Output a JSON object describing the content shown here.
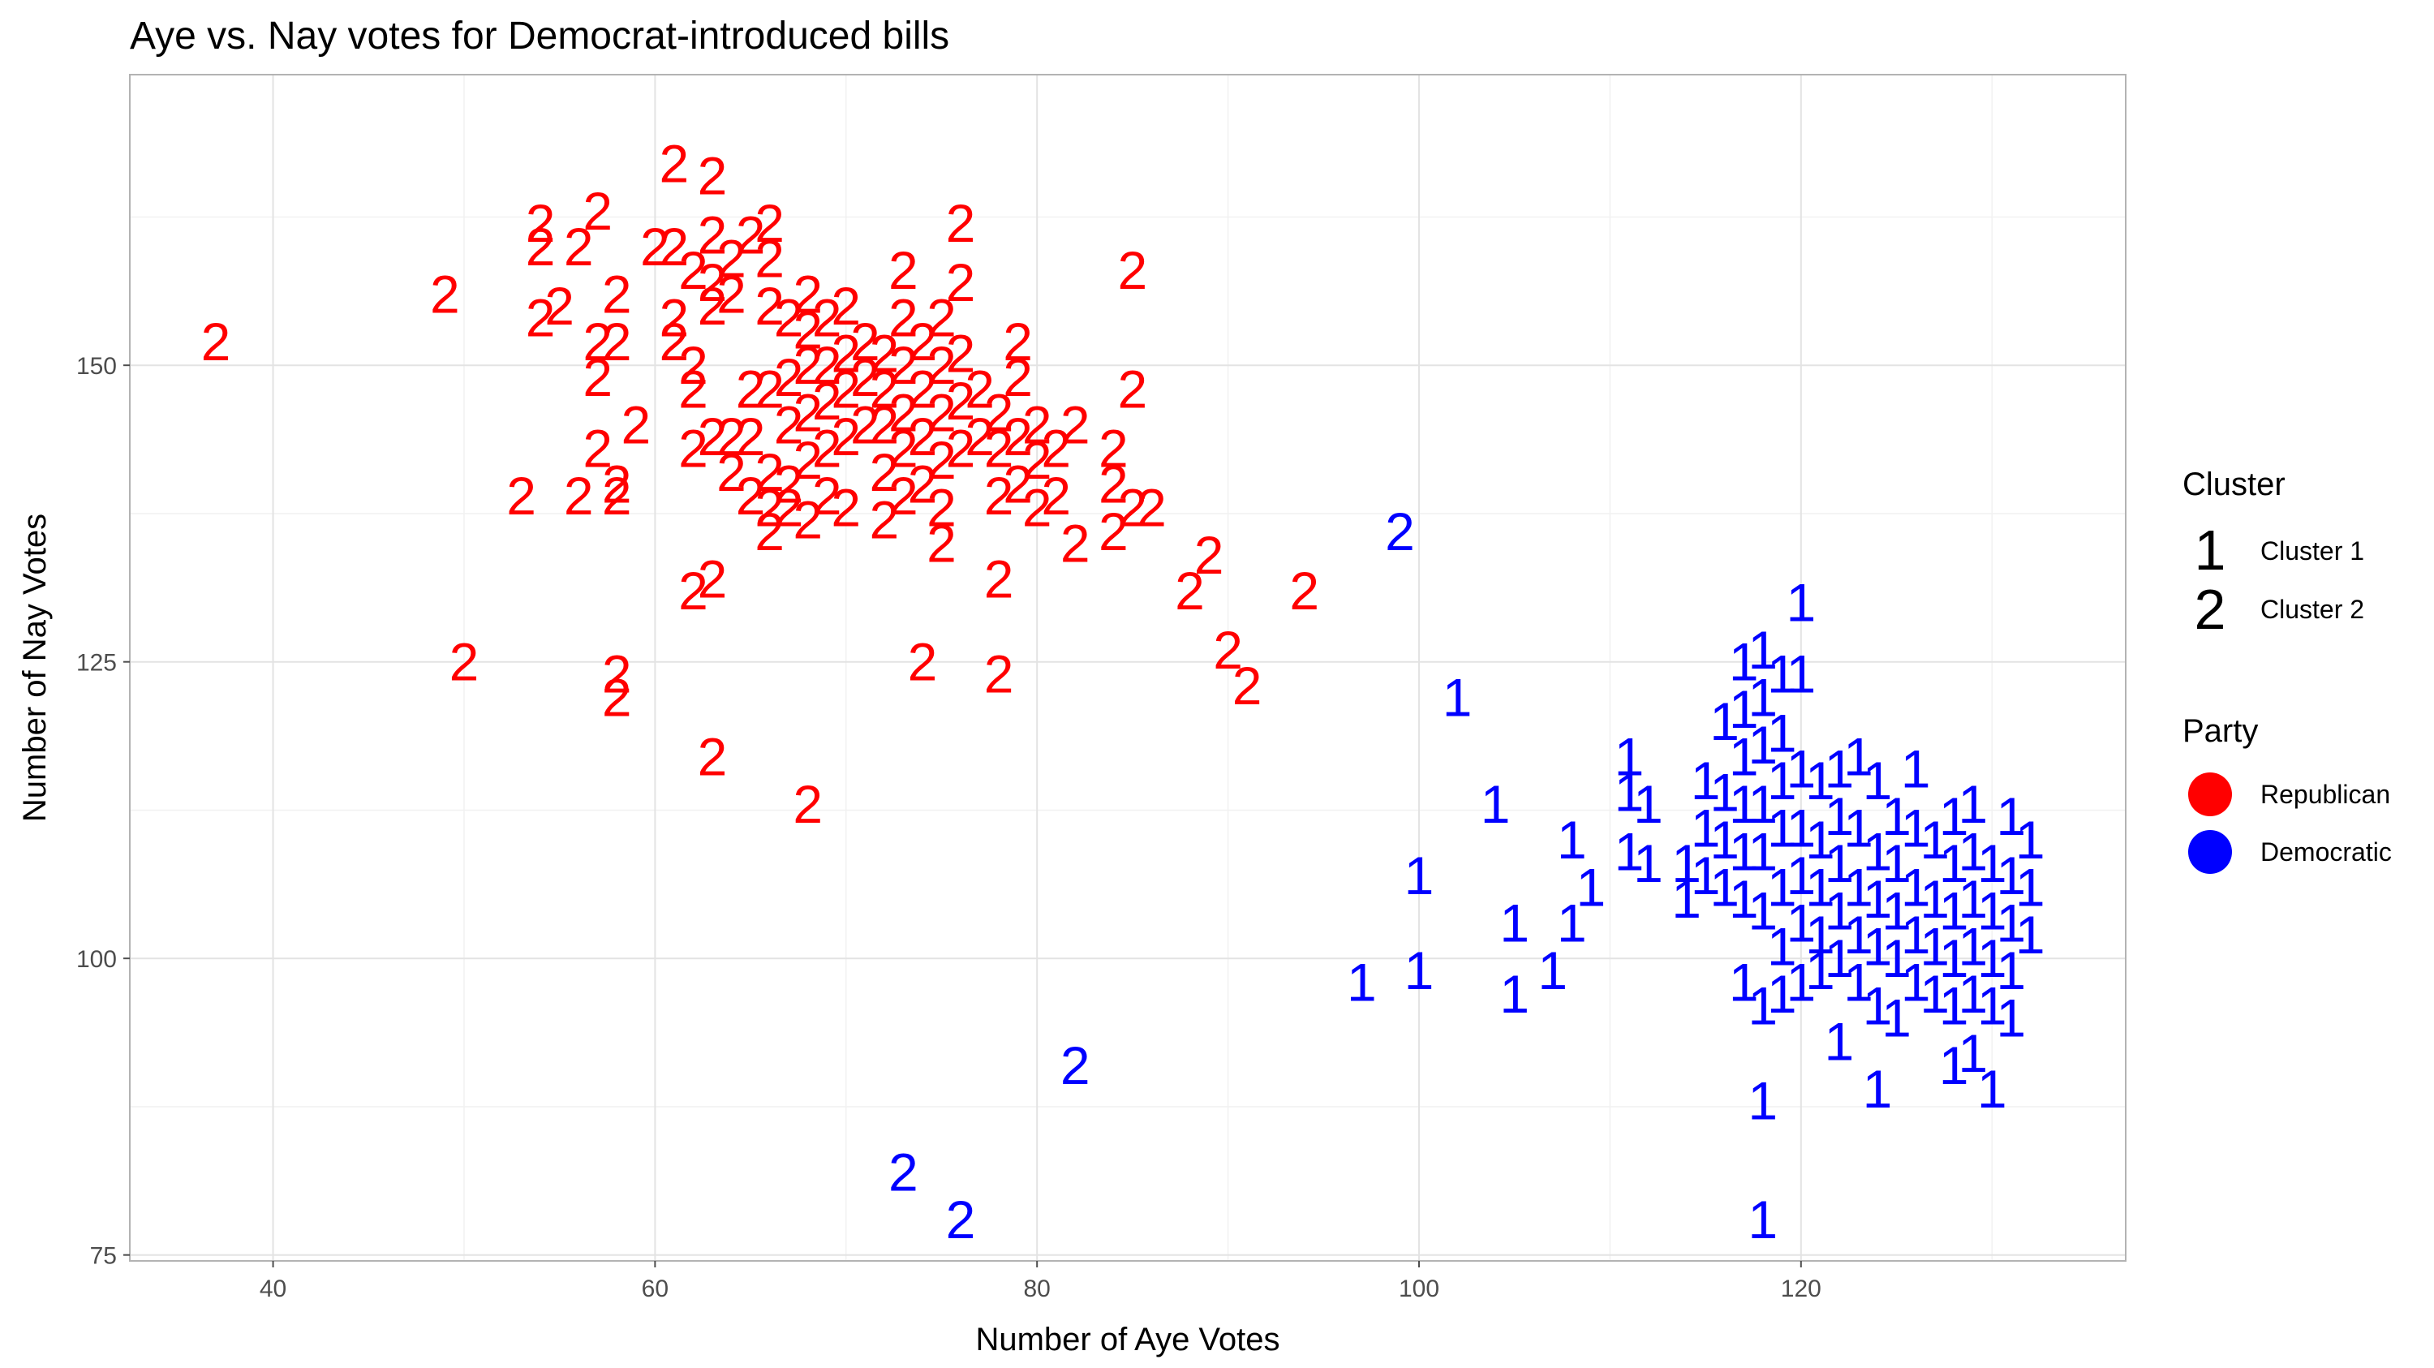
{
  "chart_data": {
    "type": "scatter",
    "title": "Aye vs. Nay votes for Democrat-introduced bills",
    "xlabel": "Number of Aye Votes",
    "ylabel": "Number of Nay Votes",
    "xlim": [
      32.5,
      137
    ],
    "ylim": [
      74.5,
      174.5
    ],
    "xticks": [
      40,
      60,
      80,
      100,
      120
    ],
    "yticks": [
      75,
      100,
      125,
      150
    ],
    "xticks_minor": [
      50,
      70,
      90,
      110,
      130
    ],
    "yticks_minor": [
      87.5,
      112.5,
      137.5,
      162.5
    ],
    "grid": true,
    "legend_placement": "right",
    "legend": {
      "cluster": {
        "title": "Cluster",
        "entries": [
          {
            "glyph": "1",
            "label": "Cluster 1"
          },
          {
            "glyph": "2",
            "label": "Cluster 2"
          }
        ]
      },
      "party": {
        "title": "Party",
        "entries": [
          {
            "label": "Republican",
            "color": "#ff0000"
          },
          {
            "label": "Democratic",
            "color": "#0000ff"
          }
        ]
      }
    },
    "series": [
      {
        "name": "Republican",
        "color": "#ff0000",
        "cluster": "2",
        "points": [
          [
            37,
            152
          ],
          [
            49,
            156
          ],
          [
            50,
            125
          ],
          [
            53,
            139
          ],
          [
            54,
            162
          ],
          [
            54,
            160
          ],
          [
            54,
            154
          ],
          [
            55,
            155
          ],
          [
            56,
            160
          ],
          [
            56,
            139
          ],
          [
            57,
            163
          ],
          [
            57,
            152
          ],
          [
            57,
            149
          ],
          [
            57,
            143
          ],
          [
            58,
            156
          ],
          [
            58,
            152
          ],
          [
            58,
            140
          ],
          [
            58,
            139
          ],
          [
            58,
            124
          ],
          [
            58,
            122
          ],
          [
            59,
            145
          ],
          [
            60,
            160
          ],
          [
            61,
            160
          ],
          [
            61,
            154
          ],
          [
            61,
            152
          ],
          [
            61,
            167
          ],
          [
            62,
            158
          ],
          [
            62,
            150
          ],
          [
            62,
            148
          ],
          [
            62,
            143
          ],
          [
            62,
            131
          ],
          [
            63,
            166
          ],
          [
            63,
            161
          ],
          [
            63,
            157
          ],
          [
            63,
            155
          ],
          [
            63,
            144
          ],
          [
            63,
            132
          ],
          [
            63,
            117
          ],
          [
            64,
            159
          ],
          [
            64,
            156
          ],
          [
            64,
            144
          ],
          [
            64,
            141
          ],
          [
            65,
            161
          ],
          [
            65,
            148
          ],
          [
            65,
            144
          ],
          [
            65,
            139
          ],
          [
            66,
            162
          ],
          [
            66,
            159
          ],
          [
            66,
            155
          ],
          [
            66,
            148
          ],
          [
            66,
            141
          ],
          [
            66,
            138
          ],
          [
            66,
            136
          ],
          [
            67,
            154
          ],
          [
            67,
            149
          ],
          [
            67,
            145
          ],
          [
            67,
            140
          ],
          [
            67,
            138
          ],
          [
            68,
            156
          ],
          [
            68,
            153
          ],
          [
            68,
            150
          ],
          [
            68,
            146
          ],
          [
            68,
            142
          ],
          [
            68,
            137
          ],
          [
            68,
            113
          ],
          [
            69,
            154
          ],
          [
            69,
            150
          ],
          [
            69,
            147
          ],
          [
            69,
            143
          ],
          [
            69,
            139
          ],
          [
            70,
            155
          ],
          [
            70,
            151
          ],
          [
            70,
            148
          ],
          [
            70,
            144
          ],
          [
            70,
            138
          ],
          [
            71,
            152
          ],
          [
            71,
            149
          ],
          [
            71,
            145
          ],
          [
            72,
            151
          ],
          [
            72,
            148
          ],
          [
            72,
            145
          ],
          [
            72,
            141
          ],
          [
            72,
            137
          ],
          [
            73,
            158
          ],
          [
            73,
            154
          ],
          [
            73,
            150
          ],
          [
            73,
            146
          ],
          [
            73,
            143
          ],
          [
            73,
            139
          ],
          [
            74,
            152
          ],
          [
            74,
            148
          ],
          [
            74,
            144
          ],
          [
            74,
            140
          ],
          [
            74,
            125
          ],
          [
            75,
            154
          ],
          [
            75,
            150
          ],
          [
            75,
            146
          ],
          [
            75,
            142
          ],
          [
            75,
            138
          ],
          [
            75,
            135
          ],
          [
            76,
            162
          ],
          [
            76,
            157
          ],
          [
            76,
            151
          ],
          [
            76,
            147
          ],
          [
            76,
            143
          ],
          [
            77,
            148
          ],
          [
            77,
            144
          ],
          [
            78,
            146
          ],
          [
            78,
            143
          ],
          [
            78,
            139
          ],
          [
            78,
            132
          ],
          [
            78,
            124
          ],
          [
            79,
            152
          ],
          [
            79,
            149
          ],
          [
            79,
            144
          ],
          [
            79,
            140
          ],
          [
            80,
            145
          ],
          [
            80,
            142
          ],
          [
            80,
            138
          ],
          [
            81,
            143
          ],
          [
            81,
            139
          ],
          [
            82,
            145
          ],
          [
            82,
            135
          ],
          [
            84,
            143
          ],
          [
            84,
            140
          ],
          [
            84,
            136
          ],
          [
            85,
            158
          ],
          [
            85,
            148
          ],
          [
            85,
            138
          ],
          [
            86,
            138
          ],
          [
            88,
            131
          ],
          [
            89,
            134
          ],
          [
            90,
            126
          ],
          [
            91,
            123
          ],
          [
            94,
            131
          ]
        ]
      },
      {
        "name": "Democratic",
        "color": "#0000ff",
        "cluster": "1",
        "points": [
          [
            97,
            98
          ],
          [
            100,
            107
          ],
          [
            100,
            99
          ],
          [
            102,
            122
          ],
          [
            104,
            113
          ],
          [
            105,
            103
          ],
          [
            105,
            97
          ],
          [
            107,
            99
          ],
          [
            108,
            110
          ],
          [
            108,
            103
          ],
          [
            109,
            106
          ],
          [
            111,
            117
          ],
          [
            111,
            114
          ],
          [
            111,
            109
          ],
          [
            112,
            113
          ],
          [
            112,
            108
          ],
          [
            114,
            108
          ],
          [
            114,
            105
          ],
          [
            115,
            115
          ],
          [
            115,
            111
          ],
          [
            115,
            107
          ],
          [
            116,
            120
          ],
          [
            116,
            114
          ],
          [
            116,
            110
          ],
          [
            116,
            106
          ],
          [
            117,
            125
          ],
          [
            117,
            121
          ],
          [
            117,
            117
          ],
          [
            117,
            113
          ],
          [
            117,
            109
          ],
          [
            117,
            105
          ],
          [
            117,
            98
          ],
          [
            118,
            126
          ],
          [
            118,
            122
          ],
          [
            118,
            118
          ],
          [
            118,
            113
          ],
          [
            118,
            109
          ],
          [
            118,
            104
          ],
          [
            118,
            96
          ],
          [
            118,
            88
          ],
          [
            118,
            78
          ],
          [
            119,
            124
          ],
          [
            119,
            119
          ],
          [
            119,
            115
          ],
          [
            119,
            111
          ],
          [
            119,
            106
          ],
          [
            119,
            101
          ],
          [
            119,
            97
          ],
          [
            120,
            130
          ],
          [
            120,
            124
          ],
          [
            120,
            116
          ],
          [
            120,
            111
          ],
          [
            120,
            107
          ],
          [
            120,
            103
          ],
          [
            120,
            98
          ],
          [
            121,
            115
          ],
          [
            121,
            110
          ],
          [
            121,
            106
          ],
          [
            121,
            102
          ],
          [
            121,
            99
          ],
          [
            122,
            116
          ],
          [
            122,
            112
          ],
          [
            122,
            108
          ],
          [
            122,
            104
          ],
          [
            122,
            100
          ],
          [
            122,
            93
          ],
          [
            123,
            117
          ],
          [
            123,
            111
          ],
          [
            123,
            106
          ],
          [
            123,
            102
          ],
          [
            123,
            98
          ],
          [
            124,
            115
          ],
          [
            124,
            109
          ],
          [
            124,
            105
          ],
          [
            124,
            101
          ],
          [
            124,
            96
          ],
          [
            124,
            89
          ],
          [
            125,
            112
          ],
          [
            125,
            108
          ],
          [
            125,
            104
          ],
          [
            125,
            100
          ],
          [
            125,
            95
          ],
          [
            126,
            116
          ],
          [
            126,
            111
          ],
          [
            126,
            106
          ],
          [
            126,
            102
          ],
          [
            126,
            98
          ],
          [
            127,
            110
          ],
          [
            127,
            105
          ],
          [
            127,
            101
          ],
          [
            127,
            97
          ],
          [
            128,
            112
          ],
          [
            128,
            108
          ],
          [
            128,
            104
          ],
          [
            128,
            100
          ],
          [
            128,
            96
          ],
          [
            128,
            91
          ],
          [
            129,
            113
          ],
          [
            129,
            109
          ],
          [
            129,
            105
          ],
          [
            129,
            101
          ],
          [
            129,
            97
          ],
          [
            129,
            92
          ],
          [
            130,
            108
          ],
          [
            130,
            104
          ],
          [
            130,
            100
          ],
          [
            130,
            96
          ],
          [
            130,
            89
          ],
          [
            131,
            112
          ],
          [
            131,
            107
          ],
          [
            131,
            103
          ],
          [
            131,
            99
          ],
          [
            131,
            95
          ],
          [
            132,
            110
          ],
          [
            132,
            106
          ],
          [
            132,
            102
          ]
        ]
      },
      {
        "name": "Democratic",
        "color": "#0000ff",
        "cluster": "2",
        "points": [
          [
            73,
            82
          ],
          [
            76,
            78
          ],
          [
            82,
            91
          ],
          [
            99,
            136
          ]
        ]
      }
    ]
  }
}
